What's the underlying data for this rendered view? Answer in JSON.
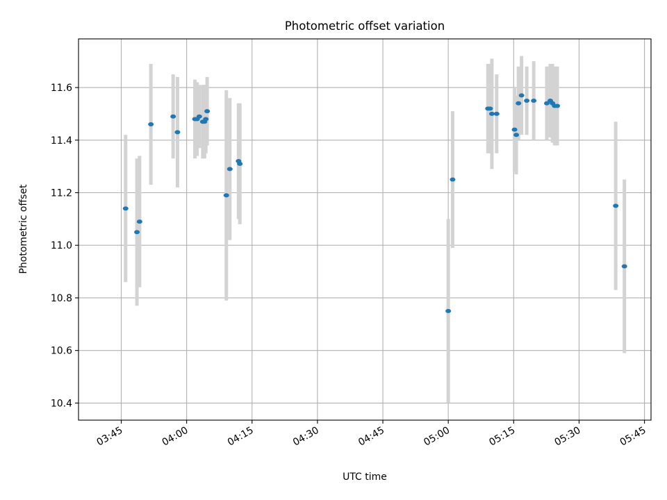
{
  "chart_data": {
    "type": "scatter",
    "title": "Photometric offset variation",
    "xlabel": "UTC time",
    "ylabel": "Photometric offset",
    "grid": true,
    "x_unit": "UTC HH:MM (minutes as decimals)",
    "xlim": [
      "03:35.2",
      "05:46.5"
    ],
    "ylim": [
      10.335,
      11.785
    ],
    "x_ticks": [
      "03:45",
      "04:00",
      "04:15",
      "04:30",
      "04:45",
      "05:00",
      "05:15",
      "05:30",
      "05:45"
    ],
    "y_ticks": [
      "10.4",
      "10.6",
      "10.8",
      "11.0",
      "11.2",
      "11.4",
      "11.6"
    ],
    "colors": {
      "marker": "#1f77b4",
      "errorbar": "#d3d3d3",
      "grid": "#b0b0b0"
    },
    "series": [
      {
        "points": [
          {
            "x": "03:46.0",
            "y": 11.14,
            "err": 0.28
          },
          {
            "x": "03:48.6",
            "y": 11.05,
            "err": 0.28
          },
          {
            "x": "03:49.2",
            "y": 11.09,
            "err": 0.25
          },
          {
            "x": "03:51.8",
            "y": 11.46,
            "err": 0.23
          },
          {
            "x": "03:56.9",
            "y": 11.49,
            "err": 0.16
          },
          {
            "x": "03:57.9",
            "y": 11.43,
            "err": 0.21
          },
          {
            "x": "04:01.9",
            "y": 11.48,
            "err": 0.15
          },
          {
            "x": "04:02.4",
            "y": 11.48,
            "err": 0.14
          },
          {
            "x": "04:02.9",
            "y": 11.49,
            "err": 0.12
          },
          {
            "x": "04:03.7",
            "y": 11.47,
            "err": 0.14
          },
          {
            "x": "04:04.1",
            "y": 11.47,
            "err": 0.14
          },
          {
            "x": "04:04.4",
            "y": 11.48,
            "err": 0.13
          },
          {
            "x": "04:04.7",
            "y": 11.51,
            "err": 0.13
          },
          {
            "x": "04:09.1",
            "y": 11.19,
            "err": 0.4
          },
          {
            "x": "04:09.9",
            "y": 11.29,
            "err": 0.27
          },
          {
            "x": "04:11.9",
            "y": 11.32,
            "err": 0.22
          },
          {
            "x": "04:12.2",
            "y": 11.31,
            "err": 0.23
          },
          {
            "x": "05:00.0",
            "y": 10.75,
            "err": 0.35
          },
          {
            "x": "05:01.0",
            "y": 11.25,
            "err": 0.26
          },
          {
            "x": "05:09.1",
            "y": 11.52,
            "err": 0.17
          },
          {
            "x": "05:09.6",
            "y": 11.52,
            "err": 0.17
          },
          {
            "x": "05:10.0",
            "y": 11.5,
            "err": 0.21
          },
          {
            "x": "05:11.1",
            "y": 11.5,
            "err": 0.15
          },
          {
            "x": "05:15.2",
            "y": 11.44,
            "err": 0.16
          },
          {
            "x": "05:15.6",
            "y": 11.42,
            "err": 0.15
          },
          {
            "x": "05:16.1",
            "y": 11.54,
            "err": 0.14
          },
          {
            "x": "05:16.8",
            "y": 11.57,
            "err": 0.15
          },
          {
            "x": "05:18.0",
            "y": 11.55,
            "err": 0.13
          },
          {
            "x": "05:19.6",
            "y": 11.55,
            "err": 0.15
          },
          {
            "x": "05:22.6",
            "y": 11.54,
            "err": 0.14
          },
          {
            "x": "05:23.4",
            "y": 11.55,
            "err": 0.14
          },
          {
            "x": "05:23.9",
            "y": 11.54,
            "err": 0.15
          },
          {
            "x": "05:24.4",
            "y": 11.53,
            "err": 0.15
          },
          {
            "x": "05:25.0",
            "y": 11.53,
            "err": 0.15
          },
          {
            "x": "05:38.4",
            "y": 11.15,
            "err": 0.32
          },
          {
            "x": "05:40.4",
            "y": 10.92,
            "err": 0.33
          }
        ]
      }
    ]
  }
}
